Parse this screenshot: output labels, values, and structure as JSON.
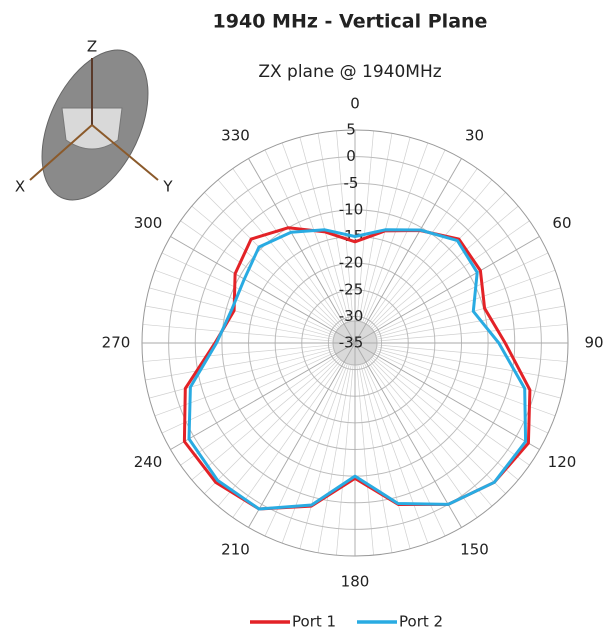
{
  "chart_data": {
    "type": "polar",
    "title": "1940 MHz - Vertical Plane",
    "subtitle": "ZX plane @ 1940MHz",
    "theta": [
      0,
      15,
      30,
      45,
      60,
      75,
      90,
      105,
      120,
      135,
      150,
      165,
      180,
      195,
      210,
      225,
      240,
      255,
      270,
      285,
      300,
      315,
      330,
      345
    ],
    "series": [
      {
        "name": "Port 1",
        "color": "#e32227",
        "values": [
          -16,
          -13.2,
          -10.6,
          -7.4,
          -7.8,
          -9.8,
          -6.8,
          -1,
          2.6,
          2,
          0,
          -3.6,
          -9.6,
          -3.3,
          1,
          2,
          2,
          -2,
          -8.7,
          -11.5,
          -9,
          -7.4,
          -10,
          -13.4
        ]
      },
      {
        "name": "Port 2",
        "color": "#29abe2",
        "values": [
          -15,
          -13,
          -10.5,
          -7.8,
          -8.5,
          -12,
          -8,
          -2,
          2,
          2,
          0,
          -3.8,
          -10,
          -3.5,
          1,
          1.5,
          1,
          -3,
          -9,
          -11,
          -11,
          -9.5,
          -11,
          -13
        ]
      }
    ],
    "rlim": [
      -35,
      5
    ],
    "rticks": [
      5,
      0,
      -5,
      -10,
      -15,
      -20,
      -25,
      -30,
      -35
    ],
    "thetaticks": [
      0,
      30,
      60,
      90,
      120,
      150,
      180,
      210,
      240,
      270,
      300,
      330
    ],
    "grid": true,
    "legend": "bottom"
  },
  "inset_axes": [
    "Z",
    "X",
    "Y"
  ]
}
